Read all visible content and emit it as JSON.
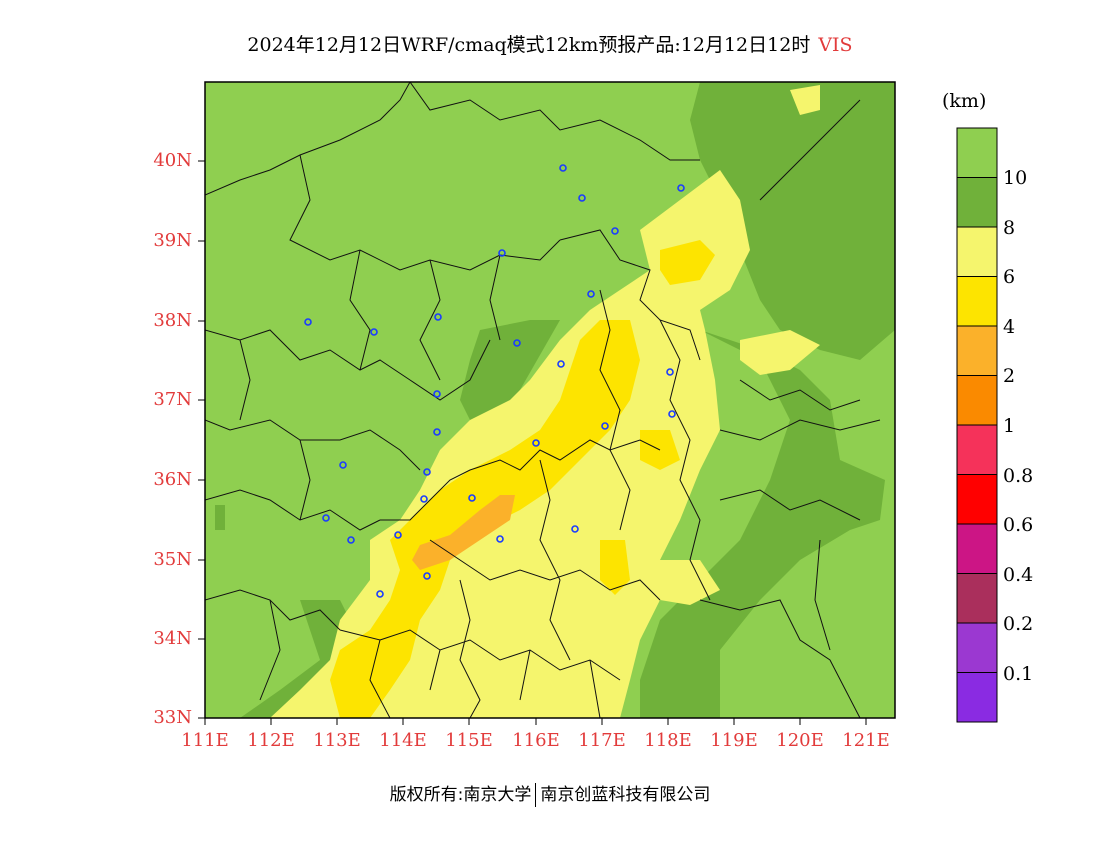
{
  "title": {
    "main": "2024年12月12日WRF/cmaq模式12km预报产品:12月12日12时",
    "variable": "VIS"
  },
  "map": {
    "lat_labels": [
      "40N",
      "39N",
      "38N",
      "37N",
      "36N",
      "35N",
      "34N",
      "33N"
    ],
    "lon_labels": [
      "111E",
      "112E",
      "113E",
      "114E",
      "115E",
      "116E",
      "117E",
      "118E",
      "119E",
      "120E",
      "121E"
    ]
  },
  "colorbar": {
    "unit": "(km)",
    "levels": [
      "10",
      "8",
      "6",
      "4",
      "2",
      "1",
      "0.8",
      "0.6",
      "0.4",
      "0.2",
      "0.1"
    ],
    "colors": [
      "#8fcf50",
      "#70b13a",
      "#f5f56d",
      "#fde400",
      "#fbb12a",
      "#fa8a00",
      "#f5325a",
      "#ff0000",
      "#cc1585",
      "#aa2f5c",
      "#9b38d1",
      "#8a2be2"
    ]
  },
  "footer": {
    "left": "版权所有:南京大学",
    "right": "南京创蓝科技有限公司"
  },
  "stations_icon": "station-circle-icon"
}
